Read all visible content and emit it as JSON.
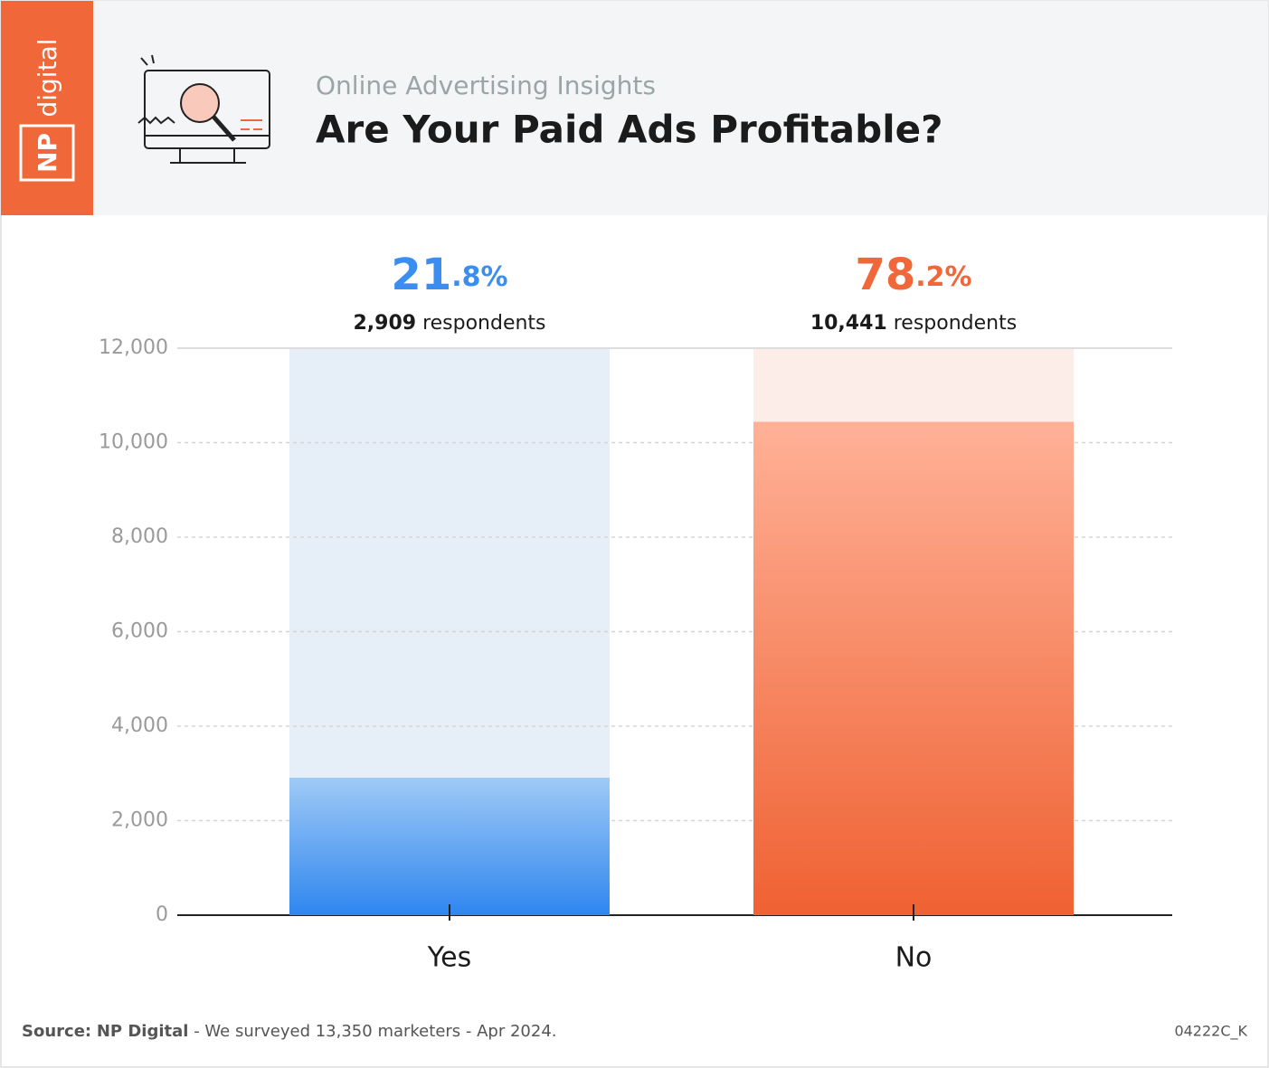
{
  "brand": {
    "first": "NP",
    "second": "digital"
  },
  "chart_data": {
    "type": "bar",
    "subtitle": "Online Advertising Insights",
    "title": "Are Your Paid Ads Profitable?",
    "categories": [
      "Yes",
      "No"
    ],
    "values": [
      2909,
      10441
    ],
    "value_labels": [
      "2,909",
      "10,441"
    ],
    "value_suffix": "respondents",
    "shares": [
      21.8,
      78.2
    ],
    "share_labels": [
      "21.8%",
      "78.2%"
    ],
    "colors": [
      "#3b8ef0",
      "#f0673a"
    ],
    "ylim": [
      0,
      12000
    ],
    "yticks": [
      0,
      {
        "value": 2000,
        "label": "2,000"
      },
      {
        "value": 4000,
        "label": "4,000"
      },
      {
        "value": 6000,
        "label": "6,000"
      },
      {
        "value": 8000,
        "label": "8,000"
      },
      {
        "value": 10000,
        "label": "10,000"
      },
      {
        "value": 12000,
        "label": "12,000"
      }
    ],
    "grid": true
  },
  "footer": {
    "source_label": "Source:",
    "source_name": "NP Digital",
    "note": " - We surveyed 13,350 marketers - Apr 2024.",
    "code": "04222C_K"
  }
}
